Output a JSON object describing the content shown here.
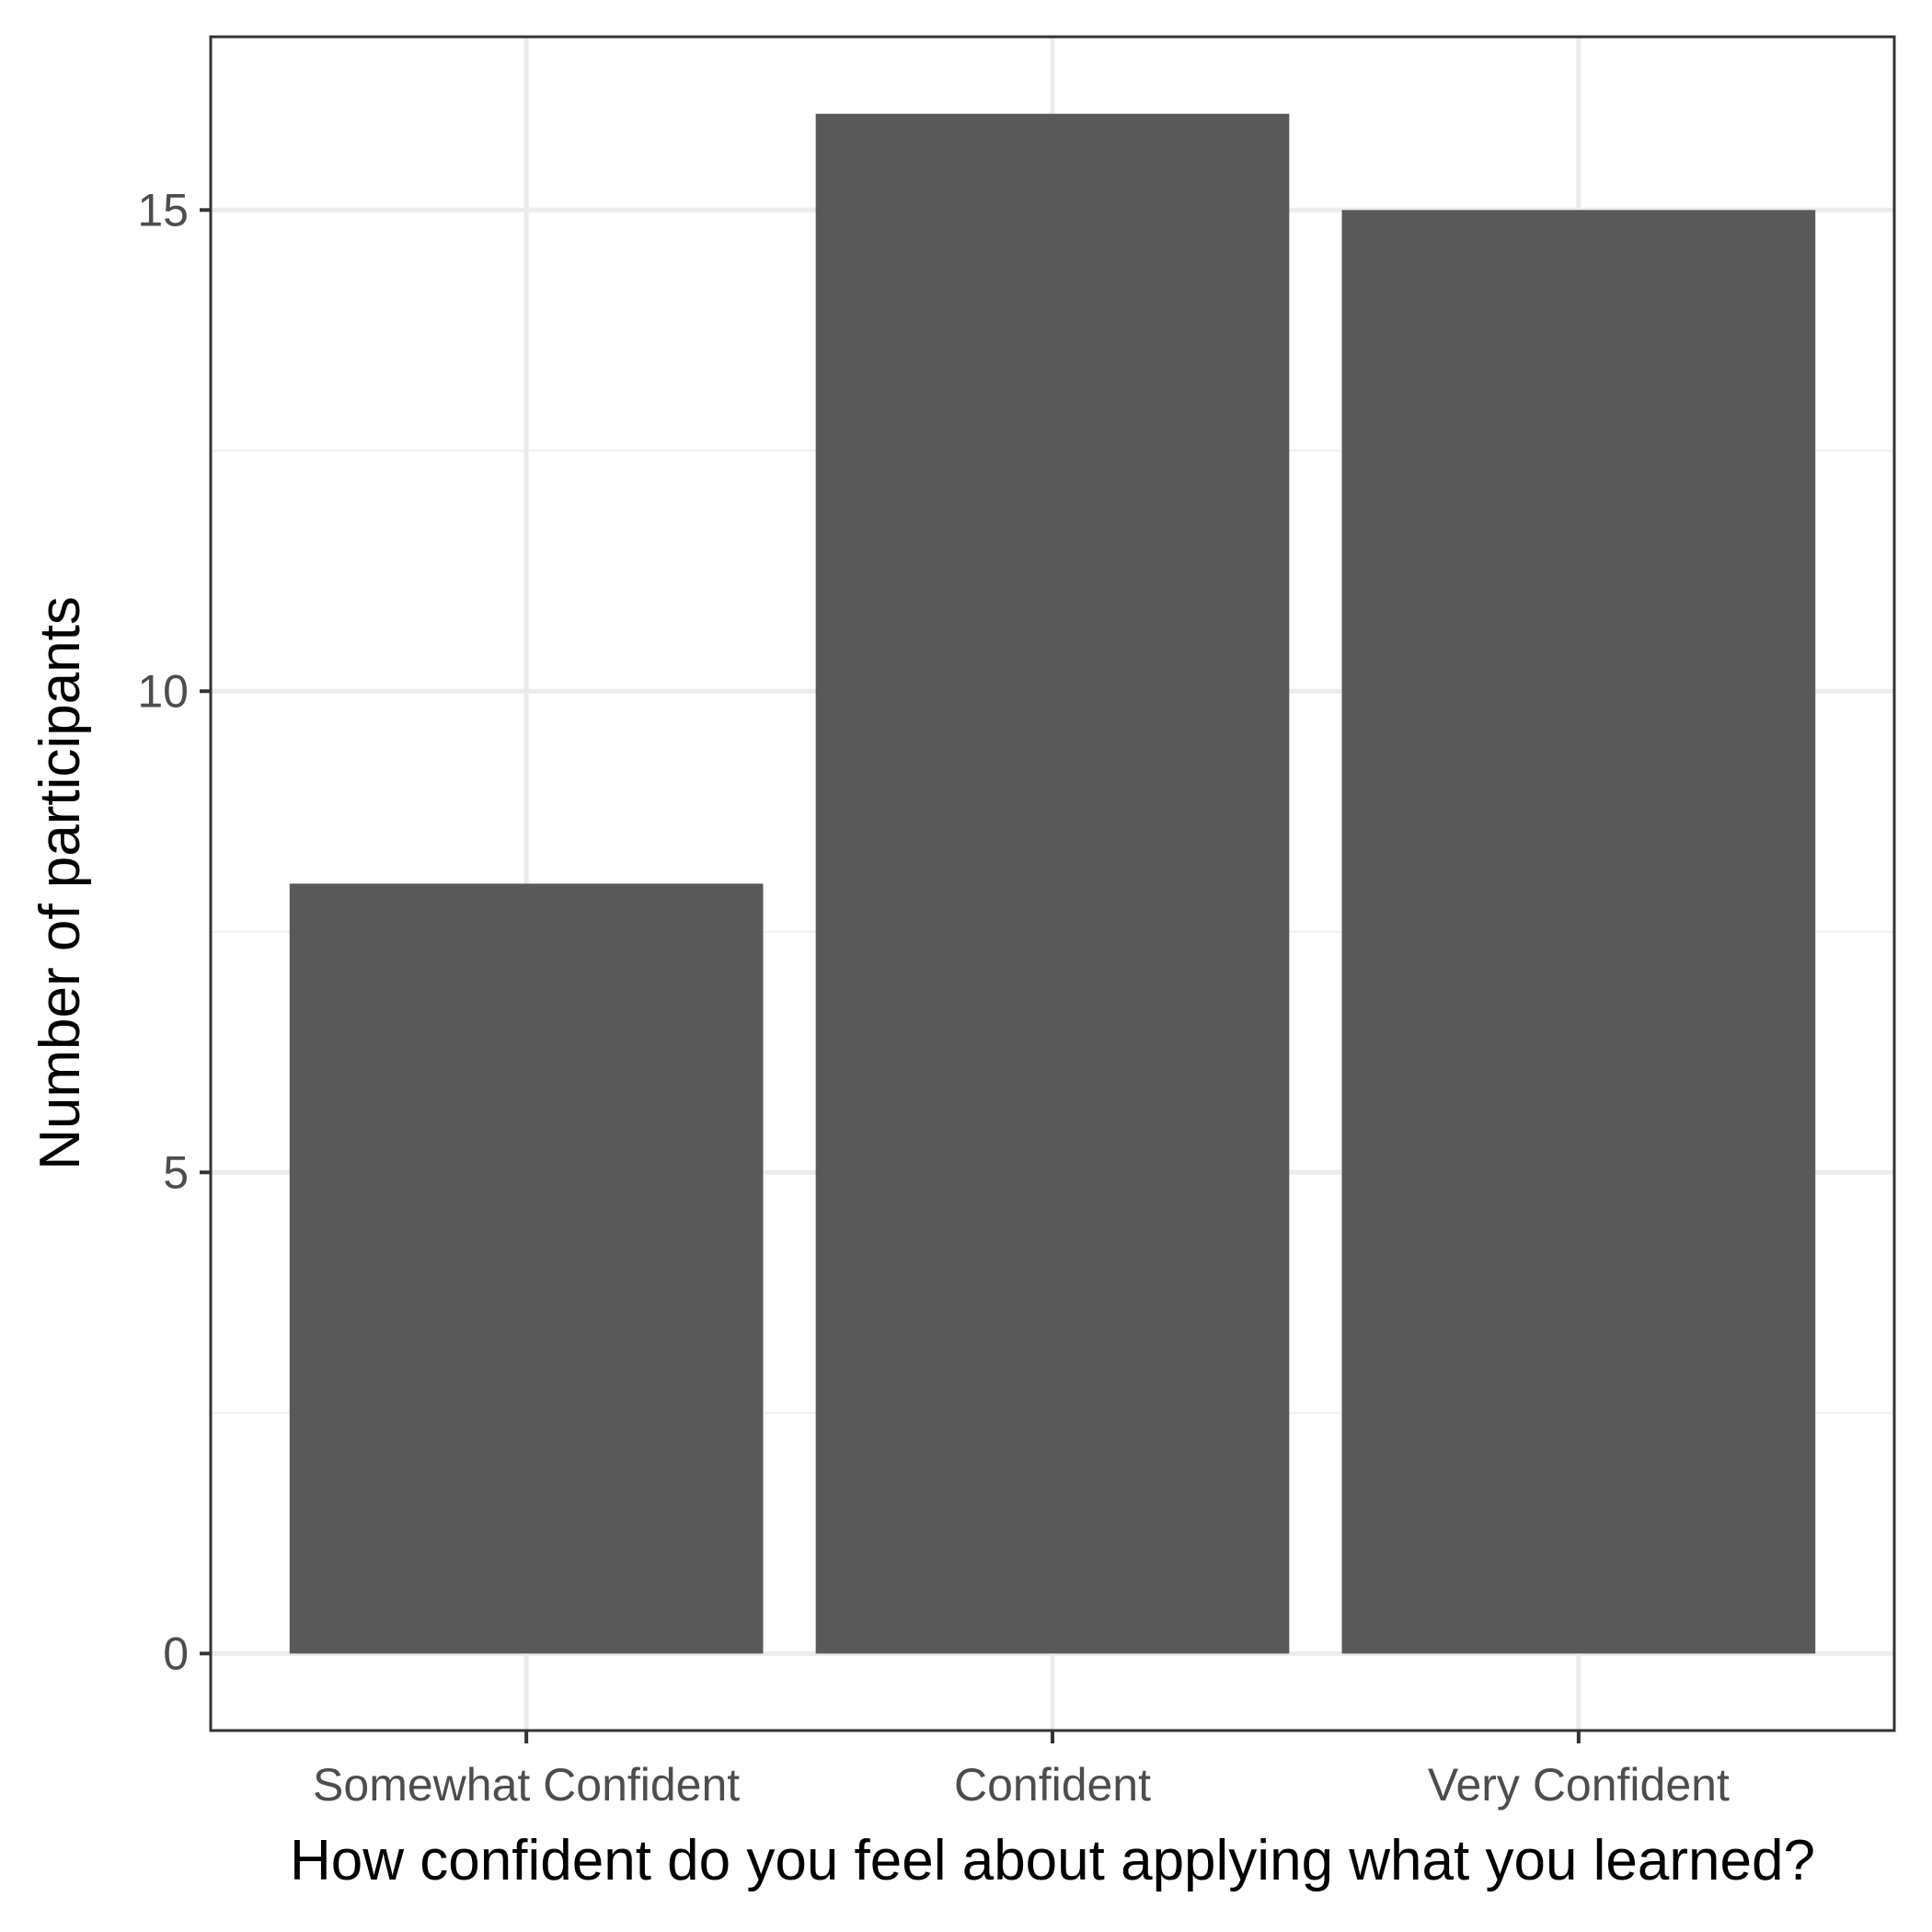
{
  "chart_data": {
    "type": "bar",
    "categories": [
      "Somewhat Confident",
      "Confident",
      "Very Confident"
    ],
    "values": [
      8,
      16,
      15
    ],
    "title": "",
    "xlabel": "How confident do you feel about applying what you learned?",
    "ylabel": "Number of participants",
    "ylim": [
      -0.8,
      16.8
    ],
    "yticks": [
      "0",
      "5",
      "10",
      "15"
    ],
    "grid": true,
    "legend": "none",
    "colors": {
      "bar": "#595959",
      "panel_border": "#333333",
      "grid_major": "#ebebeb",
      "grid_minor": "#f2f2f2",
      "background": "#ffffff"
    }
  }
}
